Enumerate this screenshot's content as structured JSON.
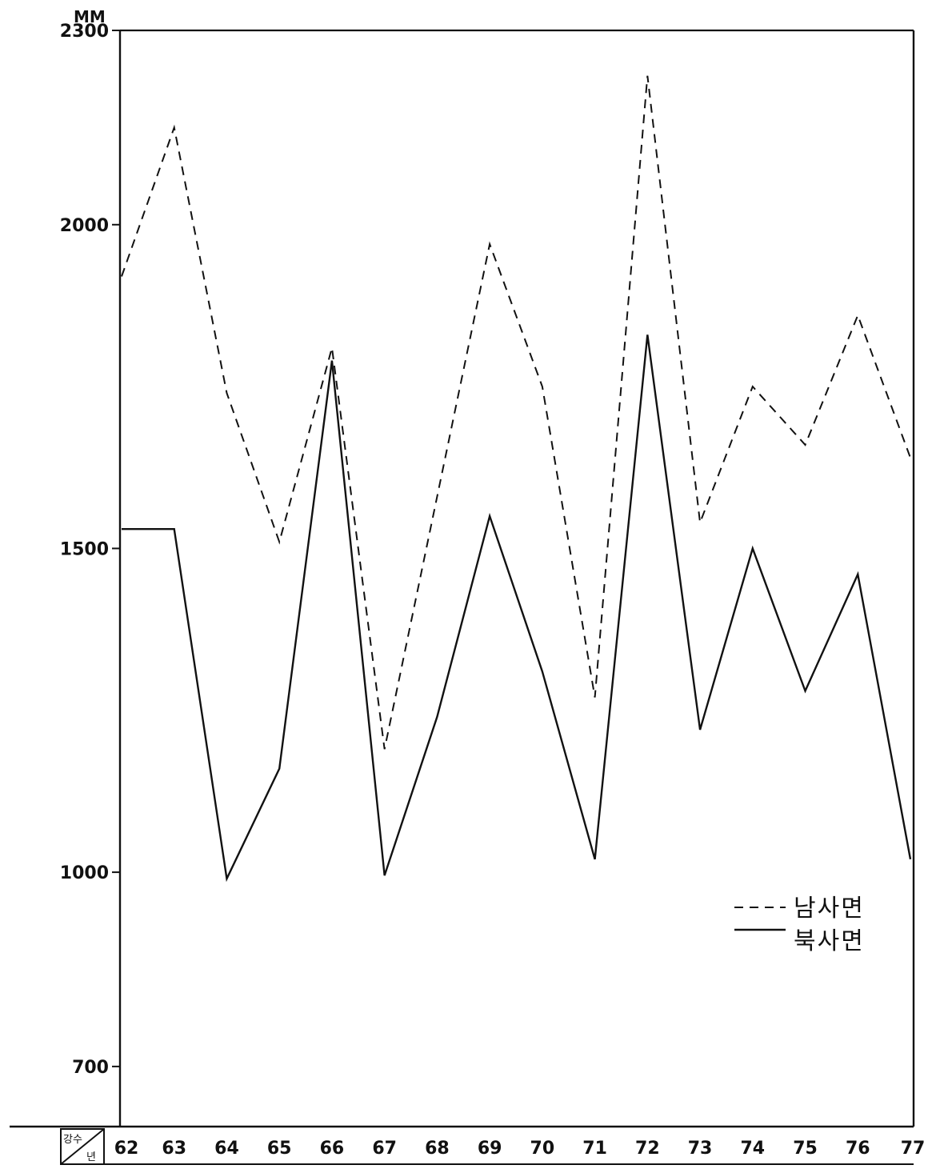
{
  "chart_data": {
    "type": "line",
    "ylabel": "MM",
    "x_header": {
      "top": "강수",
      "bottom": "년"
    },
    "categories": [
      "62",
      "63",
      "64",
      "65",
      "66",
      "67",
      "68",
      "69",
      "70",
      "71",
      "72",
      "73",
      "74",
      "75",
      "76",
      "77"
    ],
    "yticks": [
      2300,
      2000,
      1500,
      1000,
      700
    ],
    "ylim": [
      650,
      2300
    ],
    "grid": false,
    "legend_position": "right",
    "series": [
      {
        "name": "남사면",
        "style": "dashed",
        "values": [
          1920,
          2150,
          1740,
          1510,
          1810,
          1190,
          1580,
          1970,
          1750,
          1270,
          2230,
          1540,
          1750,
          1660,
          1860,
          1640
        ]
      },
      {
        "name": "북사면",
        "style": "solid",
        "values": [
          1530,
          1530,
          990,
          1160,
          1790,
          995,
          1240,
          1550,
          1310,
          1020,
          1830,
          1220,
          1500,
          1280,
          1460,
          1020
        ]
      }
    ]
  }
}
